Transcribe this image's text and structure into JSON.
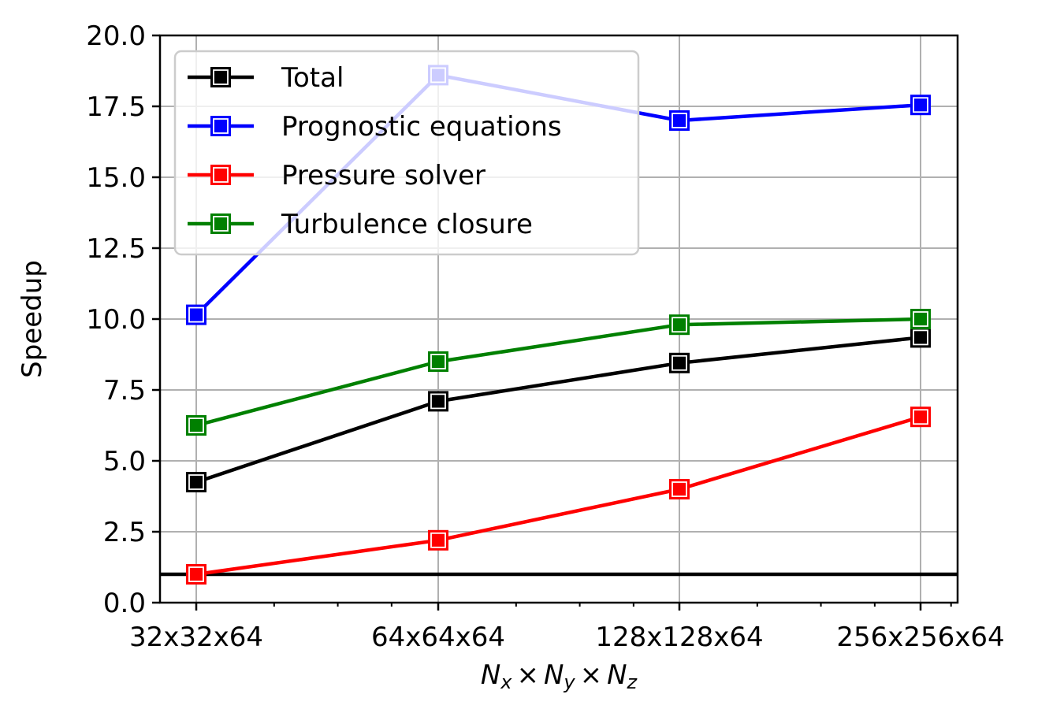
{
  "chart_data": {
    "type": "line",
    "categories": [
      "32x32x64",
      "64x64x64",
      "128x128x64",
      "256x256x64"
    ],
    "x_scale": "log2",
    "xlabel_parts": {
      "n": "N",
      "x": "x",
      "y": "y",
      "z": "z",
      "times": "×"
    },
    "ylabel": "Speedup",
    "ylim": [
      0.0,
      20.0
    ],
    "yticks": [
      "0.0",
      "2.5",
      "5.0",
      "7.5",
      "10.0",
      "12.5",
      "15.0",
      "17.5",
      "20.0"
    ],
    "grid": true,
    "legend_position": "upper-left",
    "reference_line": {
      "y": 1.0,
      "color": "#000000"
    },
    "series": [
      {
        "name": "Total",
        "color": "#000000",
        "values": [
          4.25,
          7.1,
          8.45,
          9.35
        ]
      },
      {
        "name": "Prognostic equations",
        "color": "#0000ff",
        "values": [
          10.15,
          18.6,
          17.0,
          17.55
        ]
      },
      {
        "name": "Pressure solver",
        "color": "#ff0000",
        "values": [
          1.0,
          2.2,
          4.0,
          6.55
        ]
      },
      {
        "name": "Turbulence closure",
        "color": "#008000",
        "values": [
          6.25,
          8.5,
          9.8,
          10.0
        ]
      }
    ]
  }
}
